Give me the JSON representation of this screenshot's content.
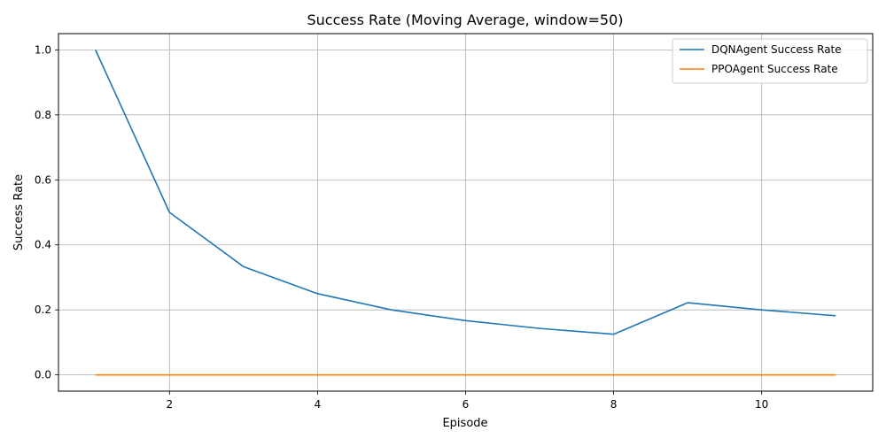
{
  "chart_data": {
    "type": "line",
    "title": "Success Rate (Moving Average, window=50)",
    "xlabel": "Episode",
    "ylabel": "Success Rate",
    "xlim": [
      0.5,
      11.5
    ],
    "ylim": [
      -0.05,
      1.05
    ],
    "x_ticks": [
      2,
      4,
      6,
      8,
      10
    ],
    "y_ticks": [
      0.0,
      0.2,
      0.4,
      0.6,
      0.8,
      1.0
    ],
    "x_tick_labels": [
      "2",
      "4",
      "6",
      "8",
      "10"
    ],
    "y_tick_labels": [
      "0.0",
      "0.2",
      "0.4",
      "0.6",
      "0.8",
      "1.0"
    ],
    "grid": true,
    "legend_position": "top-right",
    "x": [
      1,
      2,
      3,
      4,
      5,
      6,
      7,
      8,
      9,
      10,
      11
    ],
    "series": [
      {
        "name": "DQNAgent Success Rate",
        "color": "#1f77b4",
        "values": [
          1.0,
          0.5,
          0.333,
          0.25,
          0.2,
          0.167,
          0.143,
          0.125,
          0.222,
          0.2,
          0.182
        ]
      },
      {
        "name": "PPOAgent Success Rate",
        "color": "#ff7f0e",
        "values": [
          0,
          0,
          0,
          0,
          0,
          0,
          0,
          0,
          0,
          0,
          0
        ]
      }
    ]
  }
}
